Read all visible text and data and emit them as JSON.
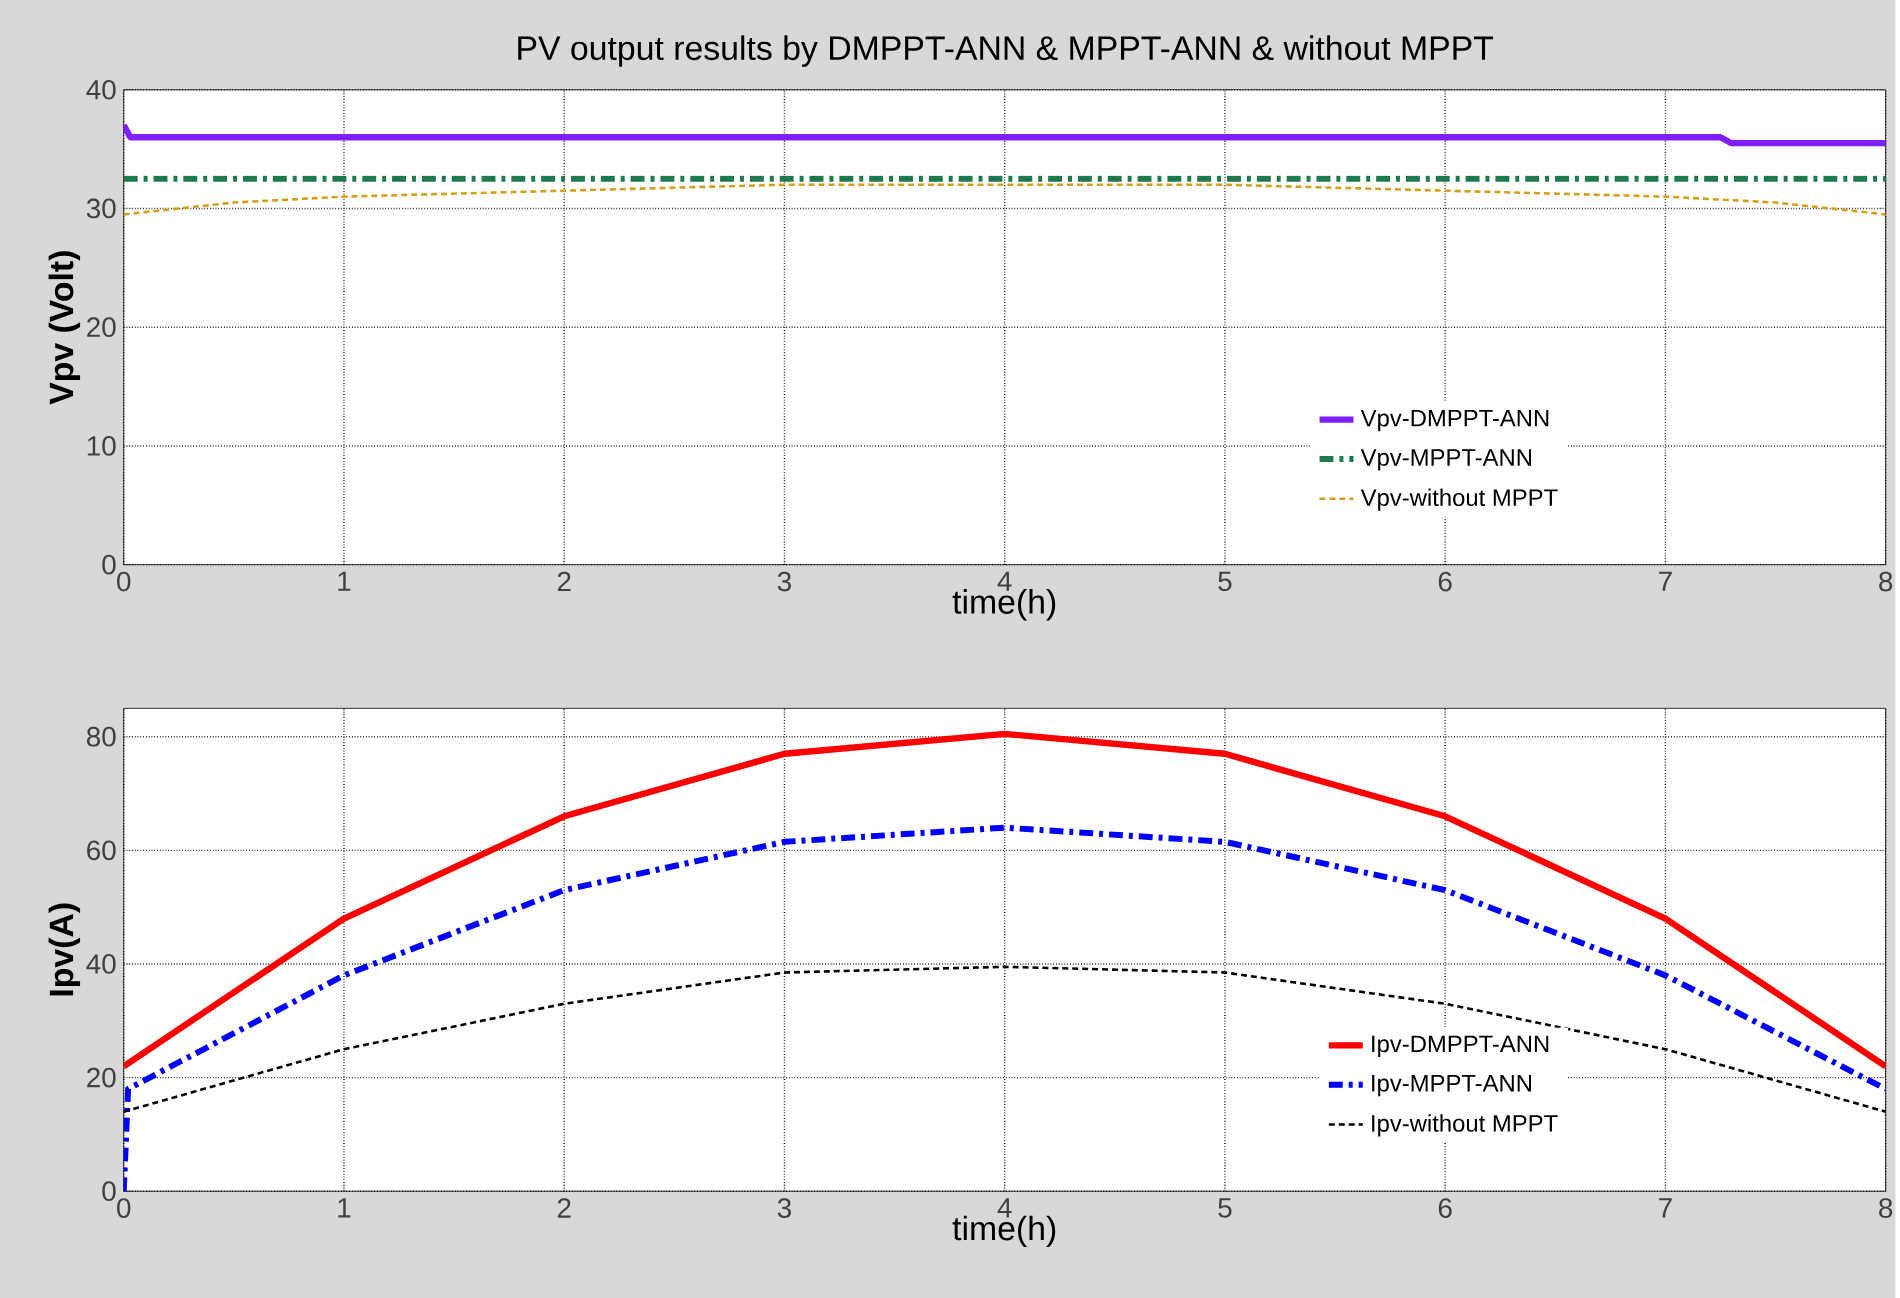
{
  "chart_data": [
    {
      "type": "line",
      "title": "PV output results by DMPPT-ANN & MPPT-ANN & without MPPT",
      "xlabel": "time(h)",
      "ylabel": "Vpv (Volt)",
      "xlim": [
        0,
        8
      ],
      "ylim": [
        0,
        40
      ],
      "xticks": [
        0,
        1,
        2,
        3,
        4,
        5,
        6,
        7,
        8
      ],
      "yticks": [
        0,
        10,
        20,
        30,
        40
      ],
      "grid": true,
      "legend": "bottom right",
      "series": [
        {
          "name": "Vpv-DMPPT-ANN",
          "color": "#7f1fff",
          "line_style": "solid",
          "x": [
            0,
            0.03,
            7.25,
            7.3,
            8
          ],
          "values": [
            37,
            36,
            36,
            35.5,
            35.5
          ]
        },
        {
          "name": "Vpv-MPPT-ANN",
          "color": "#1e7a4e",
          "line_style": "dashdot",
          "x": [
            0,
            8
          ],
          "values": [
            32.5,
            32.5
          ]
        },
        {
          "name": "Vpv-without MPPT",
          "color": "#d4a017",
          "line_style": "dashed",
          "x": [
            0,
            0.5,
            1,
            2,
            3,
            4,
            5,
            6,
            7,
            7.5,
            8
          ],
          "values": [
            29.5,
            30.5,
            31,
            31.5,
            32,
            32,
            32,
            31.5,
            31,
            30.5,
            29.5
          ]
        }
      ]
    },
    {
      "type": "line",
      "xlabel": "time(h)",
      "ylabel": "Ipv(A)",
      "xlim": [
        0,
        8
      ],
      "ylim": [
        0,
        85
      ],
      "xticks": [
        0,
        1,
        2,
        3,
        4,
        5,
        6,
        7,
        8
      ],
      "yticks": [
        0,
        20,
        40,
        60,
        80
      ],
      "grid": true,
      "legend": "bottom right",
      "series": [
        {
          "name": "Ipv-DMPPT-ANN",
          "color": "#ff0000",
          "line_style": "solid",
          "x": [
            0,
            1,
            2,
            3,
            4,
            5,
            6,
            7,
            8
          ],
          "values": [
            22,
            48,
            66,
            77,
            80.5,
            77,
            66,
            48,
            22
          ]
        },
        {
          "name": "Ipv-MPPT-ANN",
          "color": "#0000ff",
          "line_style": "dashdot",
          "x": [
            0,
            0.02,
            1,
            2,
            3,
            4,
            5,
            6,
            7,
            8
          ],
          "values": [
            0,
            18,
            38,
            53,
            61.5,
            64,
            61.5,
            53,
            38,
            18
          ]
        },
        {
          "name": "Ipv-without MPPT",
          "color": "#000000",
          "line_style": "dashed",
          "x": [
            0,
            1,
            2,
            3,
            4,
            5,
            6,
            7,
            8
          ],
          "values": [
            14,
            25,
            33,
            38.5,
            39.5,
            38.5,
            33,
            25,
            14
          ]
        }
      ]
    }
  ]
}
